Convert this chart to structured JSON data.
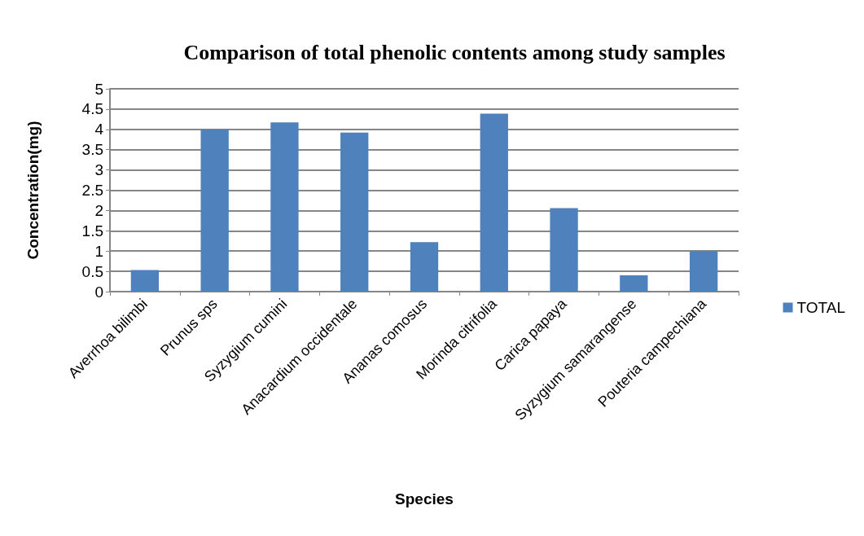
{
  "chart_data": {
    "type": "bar",
    "title": "Comparison of total phenolic contents among study samples",
    "xlabel": "Species",
    "ylabel": "Concentration(mg)",
    "categories": [
      "Averrhoa bilimbi",
      "Prunus sps",
      "Syzygium cumini",
      "Anacardium occidentale",
      "Ananas comosus",
      "Morinda citrifolia",
      "Carica papaya",
      "Syzygium samarangense",
      "Pouteria campechiana"
    ],
    "series": [
      {
        "name": "TOTAL",
        "color": "#4f81bd",
        "values": [
          0.53,
          4.0,
          4.17,
          3.92,
          1.22,
          4.39,
          2.06,
          0.4,
          1.0
        ]
      }
    ],
    "ylim": [
      0,
      5
    ],
    "yticks": [
      0,
      0.5,
      1,
      1.5,
      2,
      2.5,
      3,
      3.5,
      4,
      4.5,
      5
    ],
    "grid": "y",
    "legend": "right"
  }
}
